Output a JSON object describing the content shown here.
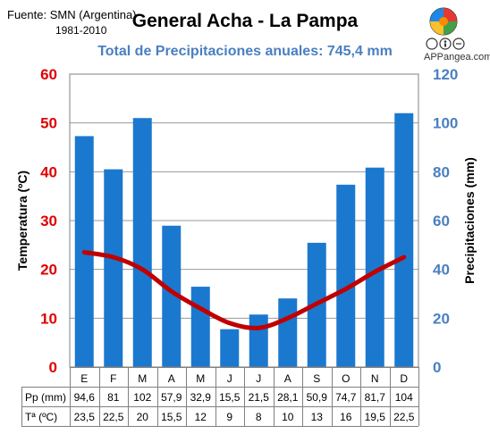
{
  "header": {
    "source": "Fuente: SMN (Argentina)",
    "period": "1981-2010",
    "brand": "APPangea.com"
  },
  "colors": {
    "bars": "#1b78cf",
    "line": "#c00000",
    "left_axis": "#e00000",
    "right_axis": "#4a7fc1",
    "subtitle": "#4a7fc1"
  },
  "table": {
    "row_labels": [
      "Pp (mm)",
      "Tª (ºC)"
    ]
  },
  "chart_data": {
    "type": "bar",
    "title": "General Acha - La Pampa",
    "subtitle": "Total de Precipitaciones anuales: 745,4 mm",
    "categories": [
      "E",
      "F",
      "M",
      "A",
      "M",
      "J",
      "J",
      "A",
      "S",
      "O",
      "N",
      "D"
    ],
    "series": [
      {
        "name": "Pp (mm)",
        "type": "bar",
        "axis": "right",
        "values": [
          94.6,
          81,
          102,
          57.9,
          32.9,
          15.5,
          21.5,
          28.1,
          50.9,
          74.7,
          81.7,
          104
        ],
        "labels": [
          "94,6",
          "81",
          "102",
          "57,9",
          "32,9",
          "15,5",
          "21,5",
          "28,1",
          "50,9",
          "74,7",
          "81,7",
          "104"
        ]
      },
      {
        "name": "Tª (ºC)",
        "type": "line",
        "axis": "left",
        "values": [
          23.5,
          22.5,
          20,
          15.5,
          12,
          9,
          8,
          10,
          13,
          16,
          19.5,
          22.5
        ],
        "labels": [
          "23,5",
          "22,5",
          "20",
          "15,5",
          "12",
          "9",
          "8",
          "10",
          "13",
          "16",
          "19,5",
          "22,5"
        ]
      }
    ],
    "ylabel_left": "Temperatura (ºC)",
    "ylabel_right": "Precipitaciones (mm)",
    "ylim_left": [
      0,
      60
    ],
    "ylim_right": [
      0,
      120
    ],
    "yticks_left": [
      0,
      10,
      20,
      30,
      40,
      50,
      60
    ],
    "yticks_right": [
      0,
      20,
      40,
      60,
      80,
      100,
      120
    ],
    "grid": "horizontal"
  }
}
